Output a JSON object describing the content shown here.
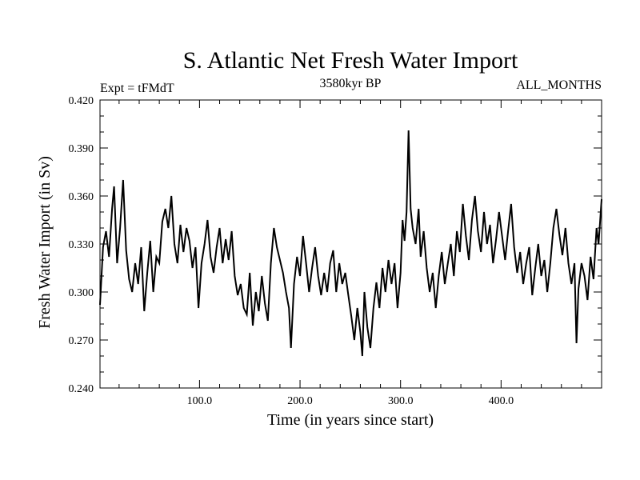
{
  "chart_data": {
    "type": "line",
    "title": "S. Atlantic Net Fresh Water Import",
    "subtitle_left": "Expt = tFMdT",
    "subtitle_center": "3580kyr BP",
    "subtitle_right": "ALL_MONTHS",
    "xlabel": "Time (in years since start)",
    "ylabel": "Fresh Water Import (in Sv)",
    "xlim": [
      1,
      500
    ],
    "ylim": [
      0.24,
      0.42
    ],
    "x_ticks": [
      100,
      200,
      300,
      400
    ],
    "x_tick_labels": [
      "100.0",
      "200.0",
      "300.0",
      "400.0"
    ],
    "y_ticks": [
      0.24,
      0.27,
      0.3,
      0.33,
      0.36,
      0.39,
      0.42
    ],
    "y_tick_labels": [
      "0.240",
      "0.270",
      "0.300",
      "0.330",
      "0.360",
      "0.390",
      "0.420"
    ],
    "series": [
      {
        "name": "Fresh Water Import",
        "color": "#000000",
        "points": [
          [
            1,
            0.292
          ],
          [
            4,
            0.328
          ],
          [
            7,
            0.338
          ],
          [
            10,
            0.322
          ],
          [
            13,
            0.352
          ],
          [
            15,
            0.366
          ],
          [
            18,
            0.318
          ],
          [
            21,
            0.34
          ],
          [
            24,
            0.37
          ],
          [
            27,
            0.326
          ],
          [
            30,
            0.308
          ],
          [
            33,
            0.3
          ],
          [
            36,
            0.318
          ],
          [
            39,
            0.305
          ],
          [
            42,
            0.328
          ],
          [
            45,
            0.288
          ],
          [
            48,
            0.312
          ],
          [
            51,
            0.332
          ],
          [
            54,
            0.3
          ],
          [
            57,
            0.322
          ],
          [
            60,
            0.318
          ],
          [
            63,
            0.344
          ],
          [
            66,
            0.352
          ],
          [
            69,
            0.34
          ],
          [
            72,
            0.36
          ],
          [
            75,
            0.33
          ],
          [
            78,
            0.318
          ],
          [
            81,
            0.342
          ],
          [
            84,
            0.325
          ],
          [
            87,
            0.34
          ],
          [
            90,
            0.332
          ],
          [
            93,
            0.315
          ],
          [
            96,
            0.328
          ],
          [
            99,
            0.29
          ],
          [
            102,
            0.318
          ],
          [
            105,
            0.33
          ],
          [
            108,
            0.345
          ],
          [
            111,
            0.322
          ],
          [
            114,
            0.312
          ],
          [
            117,
            0.328
          ],
          [
            120,
            0.34
          ],
          [
            123,
            0.318
          ],
          [
            126,
            0.333
          ],
          [
            129,
            0.32
          ],
          [
            132,
            0.338
          ],
          [
            135,
            0.31
          ],
          [
            138,
            0.298
          ],
          [
            141,
            0.305
          ],
          [
            144,
            0.29
          ],
          [
            147,
            0.286
          ],
          [
            150,
            0.312
          ],
          [
            153,
            0.279
          ],
          [
            156,
            0.3
          ],
          [
            159,
            0.288
          ],
          [
            162,
            0.31
          ],
          [
            165,
            0.293
          ],
          [
            168,
            0.282
          ],
          [
            171,
            0.318
          ],
          [
            174,
            0.34
          ],
          [
            177,
            0.328
          ],
          [
            180,
            0.32
          ],
          [
            183,
            0.312
          ],
          [
            186,
            0.3
          ],
          [
            189,
            0.29
          ],
          [
            191,
            0.265
          ],
          [
            194,
            0.305
          ],
          [
            197,
            0.322
          ],
          [
            200,
            0.31
          ],
          [
            203,
            0.335
          ],
          [
            206,
            0.318
          ],
          [
            209,
            0.3
          ],
          [
            212,
            0.315
          ],
          [
            215,
            0.328
          ],
          [
            218,
            0.31
          ],
          [
            221,
            0.298
          ],
          [
            224,
            0.312
          ],
          [
            227,
            0.3
          ],
          [
            230,
            0.318
          ],
          [
            233,
            0.326
          ],
          [
            236,
            0.3
          ],
          [
            239,
            0.318
          ],
          [
            242,
            0.305
          ],
          [
            245,
            0.312
          ],
          [
            248,
            0.298
          ],
          [
            251,
            0.285
          ],
          [
            254,
            0.27
          ],
          [
            257,
            0.29
          ],
          [
            260,
            0.275
          ],
          [
            262,
            0.26
          ],
          [
            264,
            0.3
          ],
          [
            267,
            0.278
          ],
          [
            270,
            0.265
          ],
          [
            273,
            0.29
          ],
          [
            276,
            0.306
          ],
          [
            279,
            0.29
          ],
          [
            282,
            0.315
          ],
          [
            285,
            0.3
          ],
          [
            288,
            0.32
          ],
          [
            291,
            0.305
          ],
          [
            294,
            0.318
          ],
          [
            297,
            0.29
          ],
          [
            300,
            0.312
          ],
          [
            302,
            0.345
          ],
          [
            304,
            0.332
          ],
          [
            306,
            0.35
          ],
          [
            308,
            0.401
          ],
          [
            310,
            0.352
          ],
          [
            312,
            0.34
          ],
          [
            315,
            0.33
          ],
          [
            318,
            0.352
          ],
          [
            320,
            0.322
          ],
          [
            323,
            0.338
          ],
          [
            326,
            0.315
          ],
          [
            329,
            0.3
          ],
          [
            332,
            0.312
          ],
          [
            335,
            0.29
          ],
          [
            338,
            0.31
          ],
          [
            341,
            0.325
          ],
          [
            344,
            0.305
          ],
          [
            347,
            0.318
          ],
          [
            350,
            0.33
          ],
          [
            353,
            0.31
          ],
          [
            356,
            0.338
          ],
          [
            359,
            0.325
          ],
          [
            362,
            0.355
          ],
          [
            365,
            0.335
          ],
          [
            368,
            0.32
          ],
          [
            371,
            0.345
          ],
          [
            374,
            0.36
          ],
          [
            377,
            0.338
          ],
          [
            380,
            0.325
          ],
          [
            383,
            0.35
          ],
          [
            386,
            0.33
          ],
          [
            389,
            0.342
          ],
          [
            392,
            0.318
          ],
          [
            395,
            0.333
          ],
          [
            398,
            0.35
          ],
          [
            401,
            0.335
          ],
          [
            404,
            0.32
          ],
          [
            407,
            0.338
          ],
          [
            410,
            0.355
          ],
          [
            413,
            0.328
          ],
          [
            416,
            0.312
          ],
          [
            419,
            0.325
          ],
          [
            422,
            0.305
          ],
          [
            425,
            0.318
          ],
          [
            428,
            0.328
          ],
          [
            431,
            0.298
          ],
          [
            434,
            0.315
          ],
          [
            437,
            0.33
          ],
          [
            440,
            0.31
          ],
          [
            443,
            0.32
          ],
          [
            446,
            0.3
          ],
          [
            449,
            0.318
          ],
          [
            452,
            0.34
          ],
          [
            455,
            0.352
          ],
          [
            458,
            0.336
          ],
          [
            461,
            0.323
          ],
          [
            464,
            0.34
          ],
          [
            467,
            0.318
          ],
          [
            470,
            0.305
          ],
          [
            473,
            0.318
          ],
          [
            475,
            0.268
          ],
          [
            477,
            0.302
          ],
          [
            480,
            0.318
          ],
          [
            483,
            0.31
          ],
          [
            486,
            0.295
          ],
          [
            489,
            0.322
          ],
          [
            492,
            0.308
          ],
          [
            495,
            0.34
          ],
          [
            497,
            0.33
          ],
          [
            500,
            0.358
          ]
        ]
      }
    ]
  }
}
